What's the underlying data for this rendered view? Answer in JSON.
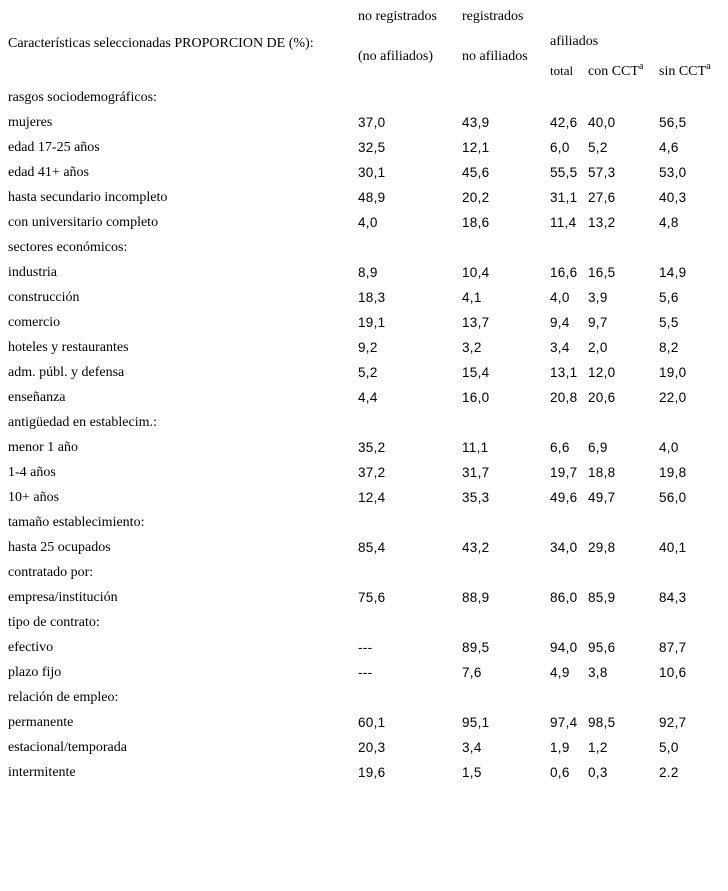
{
  "header": {
    "title": "Características seleccionadas PROPORCION DE (%):",
    "col1_top": "no registrados",
    "col1_bottom": "(no afiliados)",
    "col2_top": "registrados",
    "col2_bottom": "no afiliados",
    "afiliados": "afiliados",
    "total": "total",
    "con_cct": "con CCT",
    "sin_cct": "sin CCT",
    "footnote_mark": "a"
  },
  "rows": [
    {
      "label": "rasgos sociodemográficos:",
      "section": true,
      "values": []
    },
    {
      "label": "mujeres",
      "values": [
        "37,0",
        "43,9",
        "42,6",
        "40,0",
        "56,5"
      ]
    },
    {
      "label": "edad 17-25 años",
      "values": [
        "32,5",
        "12,1",
        "6,0",
        "5,2",
        "4,6"
      ]
    },
    {
      "label": "edad 41+ años",
      "values": [
        "30,1",
        "45,6",
        "55,5",
        "57,3",
        "53,0"
      ]
    },
    {
      "label": "hasta secundario incompleto",
      "values": [
        "48,9",
        "20,2",
        "31,1",
        "27,6",
        "40,3"
      ]
    },
    {
      "label": "con universitario completo",
      "values": [
        "4,0",
        "18,6",
        "11,4",
        "13,2",
        "4,8"
      ]
    },
    {
      "label": "sectores económicos:",
      "section": true,
      "values": []
    },
    {
      "label": "industria",
      "values": [
        "8,9",
        "10,4",
        "16,6",
        "16,5",
        "14,9"
      ]
    },
    {
      "label": "construcción",
      "values": [
        "18,3",
        "4,1",
        "4,0",
        "3,9",
        "5,6"
      ]
    },
    {
      "label": "comercio",
      "values": [
        "19,1",
        "13,7",
        "9,4",
        "9,7",
        "5,5"
      ]
    },
    {
      "label": "hoteles y restaurantes",
      "values": [
        "9,2",
        "3,2",
        "3,4",
        "2,0",
        "8,2"
      ]
    },
    {
      "label": "adm. públ. y defensa",
      "values": [
        "5,2",
        "15,4",
        "13,1",
        "12,0",
        "19,0"
      ]
    },
    {
      "label": "enseñanza",
      "values": [
        "4,4",
        "16,0",
        "20,8",
        "20,6",
        "22,0"
      ]
    },
    {
      "label": "antigüedad en establecim.:",
      "section": true,
      "values": []
    },
    {
      "label": "menor 1 año",
      "values": [
        "35,2",
        "11,1",
        "6,6",
        "6,9",
        "4,0"
      ]
    },
    {
      "label": "1-4 años",
      "values": [
        "37,2",
        "31,7",
        "19,7",
        "18,8",
        "19,8"
      ]
    },
    {
      "label": "10+ años",
      "values": [
        "12,4",
        "35,3",
        "49,6",
        "49,7",
        "56,0"
      ]
    },
    {
      "label": "tamaño establecimiento:",
      "section": true,
      "values": []
    },
    {
      "label": "hasta 25 ocupados",
      "values": [
        "85,4",
        "43,2",
        "34,0",
        "29,8",
        "40,1"
      ]
    },
    {
      "label": "contratado por:",
      "section": true,
      "values": []
    },
    {
      "label": "empresa/institución",
      "values": [
        "75,6",
        "88,9",
        "86,0",
        "85,9",
        "84,3"
      ]
    },
    {
      "label": "tipo de contrato:",
      "section": true,
      "values": []
    },
    {
      "label": "efectivo",
      "values": [
        "---",
        "89,5",
        "94,0",
        "95,6",
        "87,7"
      ]
    },
    {
      "label": "plazo fijo",
      "values": [
        "---",
        "7,6",
        "4,9",
        "3,8",
        "10,6"
      ]
    },
    {
      "label": "relación de empleo:",
      "section": true,
      "values": []
    },
    {
      "label": "permanente",
      "values": [
        "60,1",
        "95,1",
        "97,4",
        "98,5",
        "92,7"
      ]
    },
    {
      "label": "estacional/temporada",
      "values": [
        "20,3",
        "3,4",
        "1,9",
        "1,2",
        "5,0"
      ]
    },
    {
      "label": "intermitente",
      "values": [
        "19,6",
        "1,5",
        "0,6",
        "0,3",
        "2.2"
      ]
    }
  ]
}
